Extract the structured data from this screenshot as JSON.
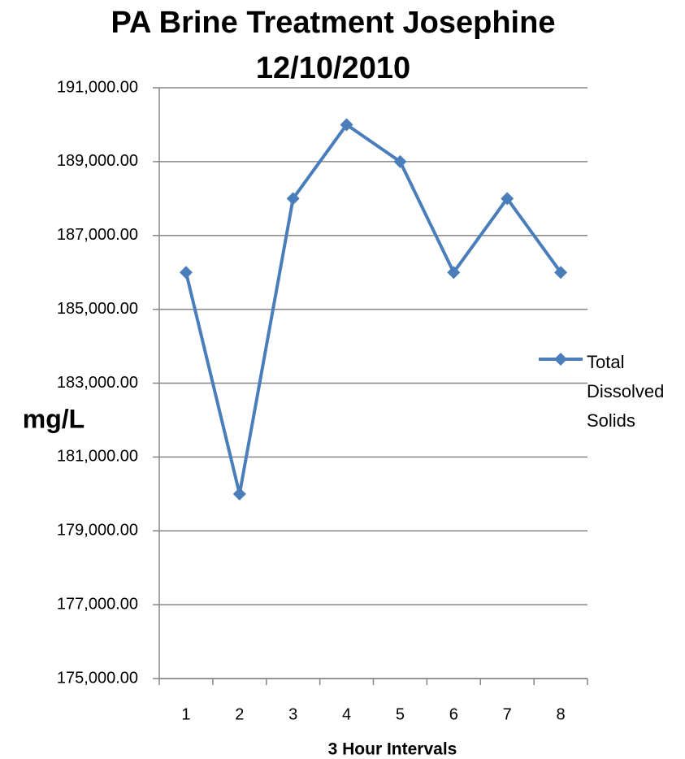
{
  "chart_data": {
    "type": "line",
    "title": [
      "PA Brine Treatment Josephine",
      "12/10/2010"
    ],
    "y_label": "mg/L",
    "x_label": "3 Hour Intervals",
    "categories": [
      "1",
      "2",
      "3",
      "4",
      "5",
      "6",
      "7",
      "8"
    ],
    "series": [
      {
        "name": "Total Dissolved Solids",
        "color": "#4a7ebb",
        "values": [
          186000,
          180000,
          188000,
          190000,
          189000,
          186000,
          188000,
          186000
        ]
      }
    ],
    "ylim": [
      175000,
      191000
    ],
    "yticks": [
      {
        "value": 175000,
        "label": "175,000.00"
      },
      {
        "value": 177000,
        "label": "177,000.00"
      },
      {
        "value": 179000,
        "label": "179,000.00"
      },
      {
        "value": 181000,
        "label": "181,000.00"
      },
      {
        "value": 183000,
        "label": "183,000.00"
      },
      {
        "value": 185000,
        "label": "185,000.00"
      },
      {
        "value": 187000,
        "label": "187,000.00"
      },
      {
        "value": 189000,
        "label": "189,000.00"
      },
      {
        "value": 191000,
        "label": "191,000.00"
      }
    ],
    "grid": true,
    "legend": "right"
  }
}
